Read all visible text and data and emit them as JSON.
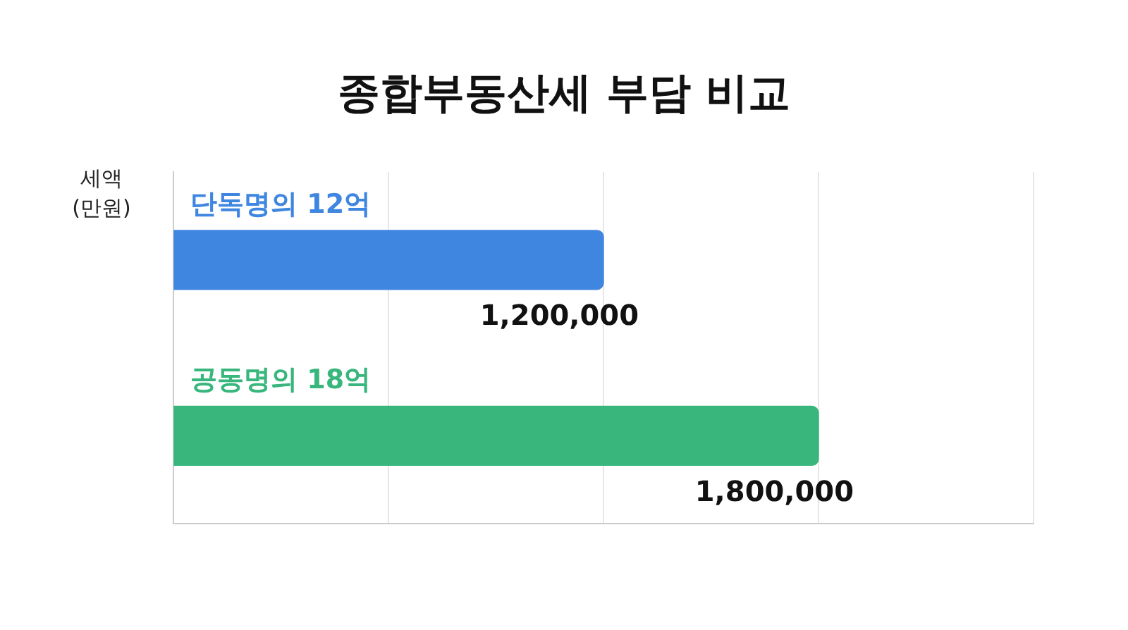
{
  "chart_data": {
    "type": "bar",
    "orientation": "horizontal",
    "title": "종합부동산세 부담 비교",
    "ylabel": "세액\n(만원)",
    "categories": [
      "단독명의 12억",
      "공동명의 18억"
    ],
    "values": [
      1200000,
      1800000
    ],
    "colors": [
      "#3f86e0",
      "#38b67c"
    ],
    "value_labels": [
      "1,200,000",
      "1,800,000"
    ],
    "xlim": [
      0,
      2400000
    ],
    "xticks": [
      {
        "value": 0,
        "label": null
      },
      {
        "value": 600000,
        "label": null
      },
      {
        "value": 1200000,
        "label": null
      },
      {
        "value": 1800000,
        "label": null
      },
      {
        "value": 2400000,
        "label": null
      }
    ],
    "grid": "x",
    "legend": false
  }
}
